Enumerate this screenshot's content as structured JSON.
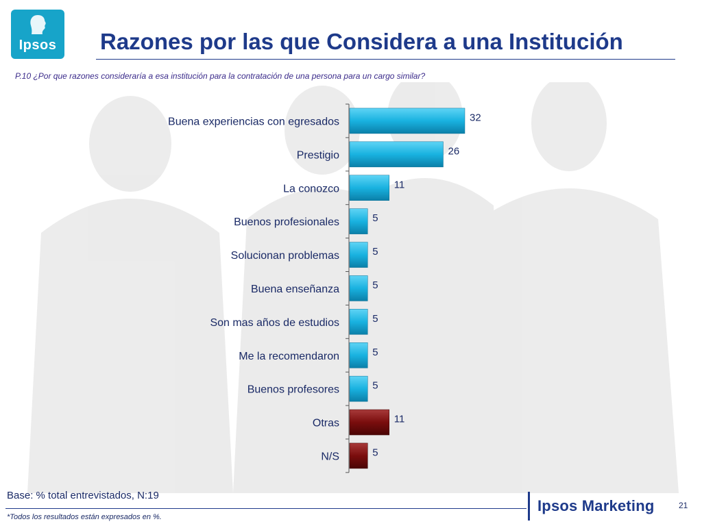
{
  "header": {
    "logo_text": "Ipsos",
    "title": "Razones por las que Considera a una Institución",
    "question": "P.10 ¿Por que razones consideraría a esa institución para la contratación de una persona para un cargo similar?"
  },
  "footer": {
    "base_text": "Base: % total entrevistados, N:19",
    "note": "*Todos los resultados están expresados en %.",
    "brand": "Ipsos Marketing",
    "page_number": "21"
  },
  "colors": {
    "accent": "#1e3a8a",
    "bar_primary": "#19b2e0",
    "bar_secondary": "#7a0d0d",
    "logo_bg": "#17a4c9"
  },
  "chart_data": {
    "type": "bar",
    "orientation": "horizontal",
    "categories": [
      "Buena experiencias con egresados",
      "Prestigio",
      "La conozco",
      "Buenos profesionales",
      "Solucionan problemas",
      "Buena enseñanza",
      "Son mas años de estudios",
      "Me la recomendaron",
      "Buenos profesores",
      "Otras",
      "N/S"
    ],
    "values": [
      32,
      26,
      11,
      5,
      5,
      5,
      5,
      5,
      5,
      11,
      5
    ],
    "bar_group": [
      "primary",
      "primary",
      "primary",
      "primary",
      "primary",
      "primary",
      "primary",
      "primary",
      "primary",
      "secondary",
      "secondary"
    ],
    "grid": false
  }
}
